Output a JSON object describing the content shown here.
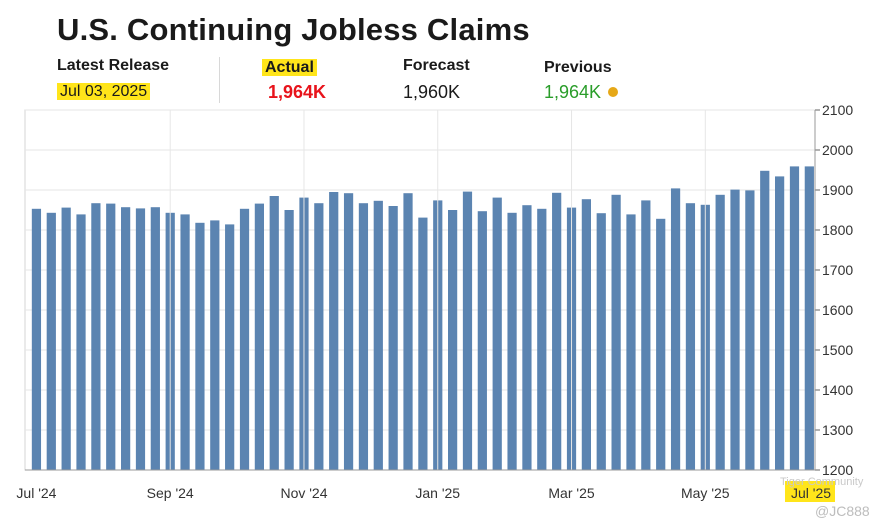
{
  "header": {
    "title": "U.S. Continuing Jobless Claims",
    "latest_release_label": "Latest Release",
    "latest_release_value": "Jul 03, 2025",
    "actual_label": "Actual",
    "actual_value": "1,964K",
    "forecast_label": "Forecast",
    "forecast_value": "1,960K",
    "previous_label": "Previous",
    "previous_value": "1,964K"
  },
  "colors": {
    "bar": "#5b84b1",
    "actual_value": "#e8131b",
    "previous_value": "#2a9d2a",
    "highlight": "#ffe51a",
    "dot": "#e6a817"
  },
  "watermark": {
    "line1": "Tiger Community",
    "line2": "@JC888"
  },
  "chart_data": {
    "type": "bar",
    "title": "U.S. Continuing Jobless Claims",
    "xlabel": "",
    "ylabel": "",
    "ylim": [
      1200,
      2100
    ],
    "yticks": [
      "1200",
      "1300",
      "1400",
      "1500",
      "1600",
      "1700",
      "1800",
      "1900",
      "2000",
      "2100"
    ],
    "y_axis_side": "right",
    "grid": true,
    "xticks": [
      {
        "label": "Jul '24",
        "index": 0
      },
      {
        "label": "Sep '24",
        "index": 9
      },
      {
        "label": "Nov '24",
        "index": 18
      },
      {
        "label": "Jan '25",
        "index": 27
      },
      {
        "label": "Mar '25",
        "index": 36
      },
      {
        "label": "May '25",
        "index": 45
      },
      {
        "label": "Jul '25",
        "index": 54
      }
    ],
    "highlighted_xtick": "Jul '25",
    "values": [
      1853,
      1843,
      1856,
      1839,
      1867,
      1866,
      1857,
      1854,
      1857,
      1843,
      1839,
      1818,
      1824,
      1814,
      1853,
      1866,
      1885,
      1850,
      1881,
      1867,
      1895,
      1892,
      1867,
      1873,
      1860,
      1892,
      1831,
      1874,
      1850,
      1896,
      1847,
      1881,
      1843,
      1862,
      1853,
      1893,
      1856,
      1877,
      1842,
      1888,
      1839,
      1874,
      1828,
      1904,
      1867,
      1863,
      1888,
      1901,
      1899,
      1948,
      1934,
      1959,
      1959
    ]
  }
}
